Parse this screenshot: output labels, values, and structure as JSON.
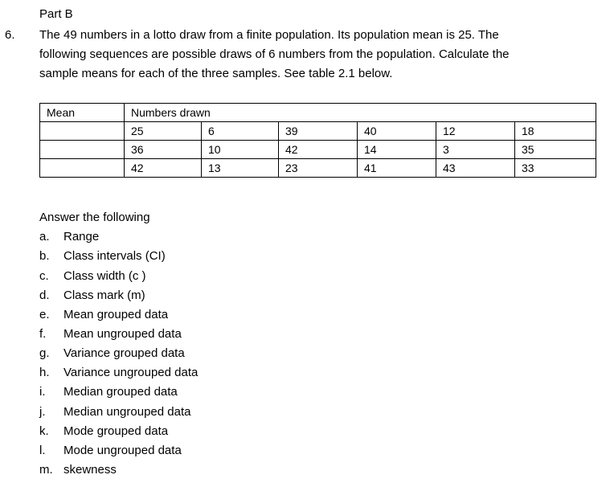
{
  "part_title": "Part B",
  "question": {
    "number": "6.",
    "lines": [
      "The 49 numbers in a lotto draw from a finite population. Its population mean is 25. The",
      "following sequences are possible draws of 6 numbers from the population. Calculate the",
      "sample means for each of the three samples. See table 2.1 below."
    ]
  },
  "table": {
    "header_mean": "Mean",
    "header_numbers": "Numbers drawn",
    "rows": [
      {
        "mean": "",
        "values": [
          "25",
          "6",
          "39",
          "40",
          "12",
          "18"
        ]
      },
      {
        "mean": "",
        "values": [
          "36",
          "10",
          "42",
          "14",
          "3",
          "35"
        ]
      },
      {
        "mean": "",
        "values": [
          "42",
          "13",
          "23",
          "41",
          "43",
          "33"
        ]
      }
    ]
  },
  "answer_intro": "Answer the following",
  "items": [
    {
      "letter": "a.",
      "text": "Range"
    },
    {
      "letter": "b.",
      "text": "Class intervals (CI)"
    },
    {
      "letter": "c.",
      "text": "Class width (c )"
    },
    {
      "letter": "d.",
      "text": "Class mark (m)"
    },
    {
      "letter": "e.",
      "text": "Mean grouped data"
    },
    {
      "letter": "f.",
      "text": "Mean ungrouped data"
    },
    {
      "letter": "g.",
      "text": "Variance grouped data"
    },
    {
      "letter": "h.",
      "text": "Variance ungrouped data"
    },
    {
      "letter": "i.",
      "text": "Median grouped data"
    },
    {
      "letter": "j.",
      "text": "Median ungrouped data"
    },
    {
      "letter": "k.",
      "text": "Mode grouped data"
    },
    {
      "letter": "l.",
      "text": "Mode ungrouped data"
    },
    {
      "letter": "m.",
      "text": "skewness"
    }
  ]
}
